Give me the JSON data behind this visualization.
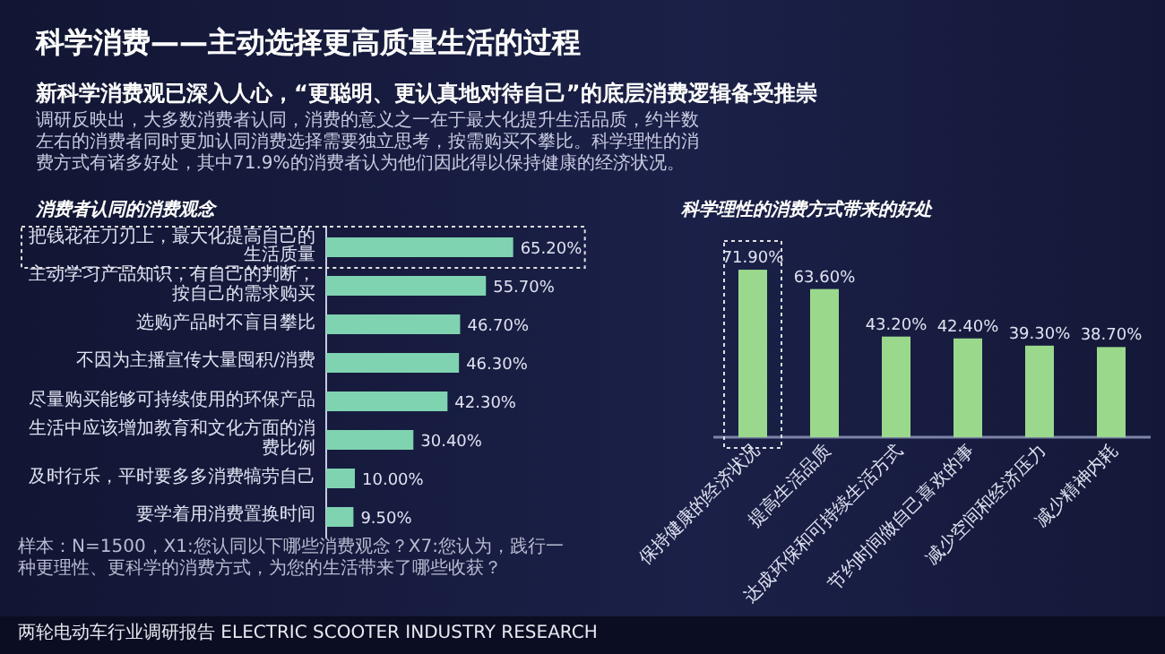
{
  "chart_data": [
    {
      "type": "other",
      "title": "科学消费——主动选择更高质量生活的过程",
      "subtitle": "新科学消费观已深入人心，“更聪明、更认真地对待自己”的底层消费逻辑备受推崇",
      "annotations": [
        "调研反映出，大多数消费者认同，消费的意义之一在于最大化提升生活品质，约半数左右的消费者同时更加认同消费选择需要独立思考，按需购买不攀比。科学理性的消费方式有诸多好处，其中71.9%的消费者认为他们因此得以保持健康的经济状况。",
        "样本：N=1500，X1:您认同以下哪些消费观念？X7:您认为，践行一种更理性、更科学的消费方式，为您的生活带来了哪些收获？",
        "两轮电动车行业调研报告 ELECTRIC SCOOTER INDUSTRY RESEARCH"
      ]
    },
    {
      "type": "bar",
      "orientation": "horizontal",
      "title": "消费者认同的消费观念",
      "color": "#7fd3b0",
      "categories": [
        "把钱花在刀刃上，最大化提高自己的生活质量",
        "主动学习产品知识，有自己的判断，按自己的需求购买",
        "选购产品时不盲目攀比",
        "不因为主播宣传大量囤积/消费",
        "尽量购买能够可持续使用的环保产品",
        "生活中应该增加教育和文化方面的消费比例",
        "及时行乐，平时要多多消费犒劳自己",
        "要学着用消费置换时间"
      ],
      "values": [
        65.2,
        55.7,
        46.7,
        46.3,
        42.3,
        30.4,
        10.0,
        9.5
      ],
      "value_labels": [
        "65.20%",
        "55.70%",
        "46.70%",
        "46.30%",
        "42.30%",
        "30.40%",
        "10.00%",
        "9.50%"
      ]
    },
    {
      "type": "bar",
      "title": "科学理性的消费方式带来的好处",
      "color": "#9ad98c",
      "categories": [
        "保持健康的经济状况",
        "提高生活品质",
        "达成环保和可持续生活方式",
        "节约时间做自己喜欢的事",
        "减少空间和经济压力",
        "减少精神内耗"
      ],
      "values": [
        71.9,
        63.6,
        43.2,
        42.4,
        39.3,
        38.7
      ],
      "value_labels": [
        "71.90%",
        "63.60%",
        "43.20%",
        "42.40%",
        "39.30%",
        "38.70%"
      ]
    }
  ]
}
